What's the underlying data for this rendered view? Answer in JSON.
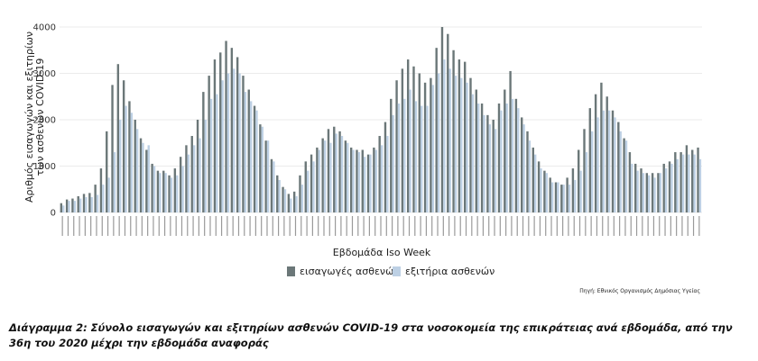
{
  "chart_data": {
    "type": "bar",
    "ylabel": "Αριθμός εισαγωγών και εξιτηρίων των ασθενών COVID-19",
    "xlabel": "Εβδομάδα Iso Week",
    "ylim": [
      0,
      4000
    ],
    "yticks": [
      0,
      1000,
      2000,
      3000,
      4000
    ],
    "grid": true,
    "legend_position": "bottom",
    "series": [
      {
        "name": "εισαγωγές ασθενών",
        "color": "#6b7778",
        "values": [
          200,
          280,
          300,
          350,
          400,
          420,
          600,
          950,
          1750,
          2750,
          3200,
          2850,
          2400,
          2000,
          1600,
          1350,
          1050,
          900,
          900,
          800,
          950,
          1200,
          1450,
          1650,
          2000,
          2600,
          2950,
          3300,
          3450,
          3700,
          3550,
          3350,
          2950,
          2650,
          2300,
          1900,
          1550,
          1150,
          800,
          550,
          400,
          450,
          800,
          1100,
          1250,
          1400,
          1600,
          1800,
          1850,
          1750,
          1550,
          1400,
          1350,
          1350,
          1250,
          1400,
          1650,
          1950,
          2450,
          2850,
          3100,
          3300,
          3150,
          3000,
          2800,
          2900,
          3550,
          4000,
          3850,
          3500,
          3300,
          3250,
          2900,
          2650,
          2350,
          2100,
          2000,
          2350,
          2650,
          3050,
          2450,
          2050,
          1750,
          1400,
          1100,
          900,
          750,
          650,
          600,
          750,
          950,
          1350,
          1800,
          2250,
          2550,
          2800,
          2500,
          2200,
          1950,
          1600,
          1300,
          1050,
          950,
          850,
          850,
          850,
          1050,
          1100,
          1300,
          1300,
          1450,
          1350,
          1400
        ]
      },
      {
        "name": "εξιτήρια ασθενών",
        "color": "#bdd0e4",
        "values": [
          150,
          250,
          250,
          300,
          330,
          330,
          380,
          600,
          750,
          1300,
          2000,
          2300,
          2150,
          1800,
          1500,
          1450,
          1000,
          850,
          850,
          750,
          800,
          1000,
          1250,
          1450,
          1600,
          2000,
          2450,
          2550,
          2850,
          3000,
          3100,
          3000,
          2600,
          2400,
          2200,
          1850,
          1550,
          1100,
          700,
          500,
          300,
          350,
          600,
          900,
          1100,
          1350,
          1550,
          1500,
          1700,
          1650,
          1500,
          1350,
          1300,
          1200,
          1250,
          1350,
          1450,
          1650,
          2100,
          2350,
          2450,
          2650,
          2400,
          2300,
          2300,
          2750,
          3000,
          3300,
          3100,
          2950,
          2900,
          2800,
          2550,
          2350,
          2100,
          1900,
          1800,
          2200,
          2350,
          2450,
          2250,
          1900,
          1550,
          1250,
          950,
          850,
          650,
          650,
          600,
          600,
          700,
          900,
          1300,
          1750,
          2050,
          2200,
          2200,
          2050,
          1750,
          1550,
          1050,
          900,
          850,
          800,
          750,
          850,
          950,
          1050,
          1150,
          1250,
          1250,
          1250,
          1150
        ]
      }
    ],
    "source_note": "Πηγή: Εθνικός Οργανισμός Δημόσιας Υγείας"
  },
  "caption": "Διάγραμμα 2: Σύνολο εισαγωγών και εξιτηρίων ασθενών COVID-19 στα νοσοκομεία της επικράτειας ανά εβδομάδα, από την 36η του 2020 μέχρι την εβδομάδα αναφοράς"
}
